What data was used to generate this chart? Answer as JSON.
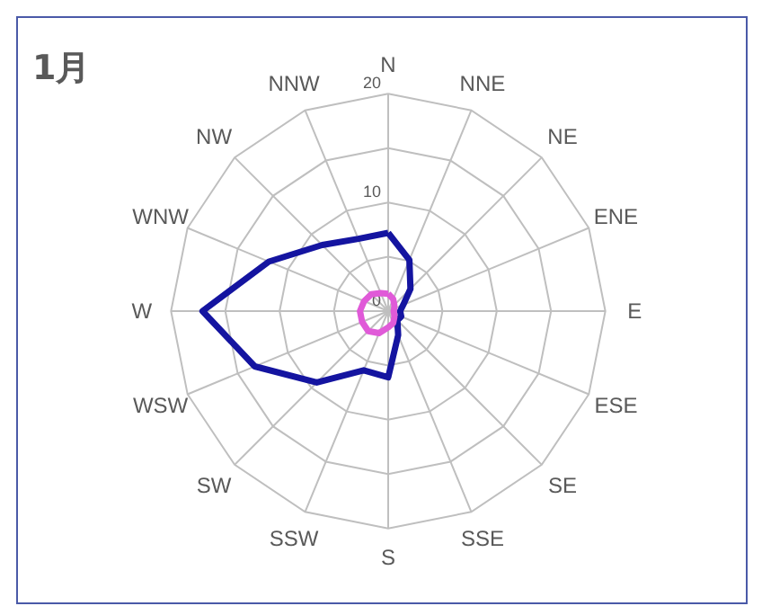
{
  "chart_data": {
    "type": "radar",
    "title": "1月",
    "categories": [
      "N",
      "NNE",
      "NE",
      "ENE",
      "E",
      "ESE",
      "SE",
      "SSE",
      "S",
      "SSW",
      "SW",
      "WSW",
      "W",
      "WNW",
      "NW",
      "NNW"
    ],
    "series": [
      {
        "color": "#1414a0",
        "values": [
          7.2,
          5.1,
          2.9,
          1.5,
          1.1,
          1.3,
          1.2,
          2.4,
          6.1,
          5.9,
          9.3,
          13.3,
          17.1,
          11.9,
          8.6,
          7.2
        ]
      },
      {
        "color": "#e05ad8",
        "values": [
          1.6,
          1.2,
          0.8,
          0.6,
          0.5,
          0.6,
          0.8,
          1.2,
          1.5,
          2.2,
          2.6,
          2.6,
          2.6,
          2.4,
          2.2,
          1.8
        ]
      }
    ],
    "ylim": [
      0,
      20
    ],
    "yticks": [
      0,
      10,
      20
    ],
    "grid": true,
    "legend": false
  }
}
